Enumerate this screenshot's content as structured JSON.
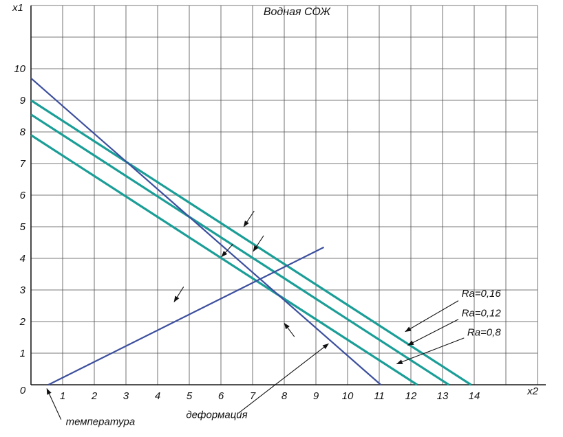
{
  "chart_data": {
    "type": "line",
    "title": "Водная СОЖ",
    "x_axis_label": "x2",
    "y_axis_label": "x1",
    "origin_label": "0",
    "x_ticks": [
      1,
      2,
      3,
      4,
      5,
      6,
      7,
      8,
      9,
      10,
      11,
      12,
      13,
      14
    ],
    "y_ticks": [
      1,
      2,
      3,
      4,
      5,
      6,
      7,
      8,
      9,
      10
    ],
    "x_grid_max": 16,
    "y_grid_max": 12,
    "grid": true,
    "grid_color": "#4d4d4d",
    "axis_color": "#1a1a1a",
    "annotation_color": "#111111",
    "series": [
      {
        "name": "Ra=0,16",
        "color": "#1b9e97",
        "width": 3.2,
        "points": [
          [
            0,
            9.0
          ],
          [
            13.9,
            0
          ]
        ]
      },
      {
        "name": "Ra=0,12",
        "color": "#1b9e97",
        "width": 3.2,
        "points": [
          [
            0,
            8.55
          ],
          [
            13.2,
            0
          ]
        ]
      },
      {
        "name": "Ra=0,8",
        "color": "#1b9e97",
        "width": 3.2,
        "points": [
          [
            0,
            7.9
          ],
          [
            12.2,
            0
          ]
        ]
      },
      {
        "name": "деформация",
        "color": "#3c4f9e",
        "width": 2.2,
        "points": [
          [
            0,
            9.7
          ],
          [
            11.05,
            0
          ]
        ]
      },
      {
        "name": "температура",
        "color": "#3c4f9e",
        "width": 2.2,
        "points": [
          [
            0.55,
            0
          ],
          [
            9.25,
            4.35
          ]
        ]
      }
    ],
    "annotations": [
      {
        "text": "Ra=0,16",
        "text_x": 13.6,
        "text_y": 2.78,
        "from_x": 13.5,
        "from_y": 2.66,
        "to_x": 11.82,
        "to_y": 1.68
      },
      {
        "text": "Ra=0,12",
        "text_x": 13.6,
        "text_y": 2.16,
        "from_x": 13.5,
        "from_y": 2.07,
        "to_x": 11.9,
        "to_y": 1.25
      },
      {
        "text": "Ra=0,8",
        "text_x": 13.78,
        "text_y": 1.55,
        "from_x": 13.68,
        "from_y": 1.48,
        "to_x": 11.55,
        "to_y": 0.66
      },
      {
        "text": "температура",
        "text_x": 1.1,
        "text_y": -1.27,
        "from_x": 0.95,
        "from_y": -1.1,
        "to_x": 0.5,
        "to_y": -0.12
      },
      {
        "text": "деформация",
        "text_x": 4.9,
        "text_y": -1.05,
        "from_x": 6.55,
        "from_y": -0.9,
        "to_x": 9.4,
        "to_y": 1.3
      },
      {
        "text": "",
        "from_x": 7.05,
        "from_y": 5.5,
        "to_x": 6.72,
        "to_y": 5.0
      },
      {
        "text": "",
        "from_x": 7.35,
        "from_y": 4.72,
        "to_x": 7.02,
        "to_y": 4.22
      },
      {
        "text": "",
        "from_x": 6.38,
        "from_y": 4.45,
        "to_x": 6.02,
        "to_y": 4.05
      },
      {
        "text": "",
        "from_x": 4.82,
        "from_y": 3.1,
        "to_x": 4.52,
        "to_y": 2.62
      },
      {
        "text": "",
        "from_x": 8.32,
        "from_y": 1.52,
        "to_x": 8.0,
        "to_y": 1.95
      }
    ]
  }
}
